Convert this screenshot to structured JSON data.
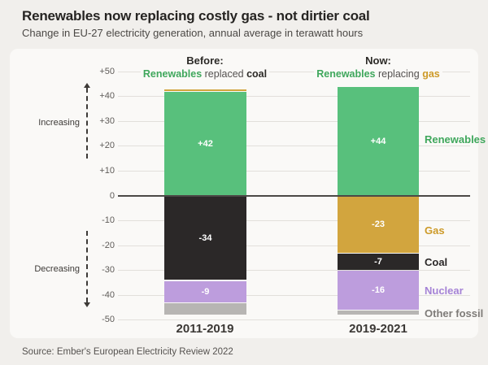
{
  "page": {
    "title": "Renewables now replacing costly gas - not dirtier coal",
    "subtitle": "Change in EU-27 electricity generation, annual average in terawatt hours",
    "source": "Source: Ember's European Electricity Review 2022"
  },
  "axis_annotations": {
    "increasing": "Increasing",
    "decreasing": "Decreasing"
  },
  "group_headers": {
    "before": {
      "title": "Before:",
      "lead": "Renewables",
      "middle": " replaced ",
      "tail": "coal"
    },
    "now": {
      "title": "Now:",
      "lead": "Renewables",
      "middle": " replacing ",
      "tail": "gas"
    }
  },
  "colors": {
    "renewables_bar": "#58c07c",
    "gas_bar": "#d2a53e",
    "coal_bar": "#2b2828",
    "nuclear_bar": "#bd9ddd",
    "other_fossil_bar": "#b7b5b3",
    "renewables_text": "#3fa75c",
    "gas_text": "#cd9a28",
    "coal_text": "#2b2828",
    "nuclear_text": "#a583d6",
    "other_fossil_text": "#7e7b78"
  },
  "chart_data": {
    "type": "bar",
    "stacked": true,
    "title": "Renewables now replacing costly gas - not dirtier coal",
    "subtitle": "Change in EU-27 electricity generation, annual average in terawatt hours",
    "unit": "terawatt hours",
    "categories": [
      "2011-2019",
      "2019-2021"
    ],
    "series": [
      {
        "name": "Renewables",
        "values": [
          42,
          44
        ],
        "color": "#58c07c",
        "label_color": "#3fa75c"
      },
      {
        "name": "Gas",
        "values": [
          1,
          -23
        ],
        "color": "#d2a53e",
        "label_color": "#cd9a28"
      },
      {
        "name": "Coal",
        "values": [
          -34,
          -7
        ],
        "color": "#2b2828",
        "label_color": "#2b2828"
      },
      {
        "name": "Nuclear",
        "values": [
          -9,
          -16
        ],
        "color": "#bd9ddd",
        "label_color": "#a583d6"
      },
      {
        "name": "Other fossil",
        "values": [
          -5,
          -2
        ],
        "color": "#b7b5b3",
        "label_color": "#7e7b78"
      }
    ],
    "ylim": [
      -50,
      50
    ],
    "yticks": [
      "+50",
      "+40",
      "+30",
      "+20",
      "+10",
      "0",
      "-10",
      "-20",
      "-30",
      "-40",
      "-50"
    ],
    "grid": true,
    "legend_position": "right",
    "visible_value_labels": [
      "+42",
      "-34",
      "-9",
      "+44",
      "-23",
      "-7",
      "-16"
    ]
  }
}
